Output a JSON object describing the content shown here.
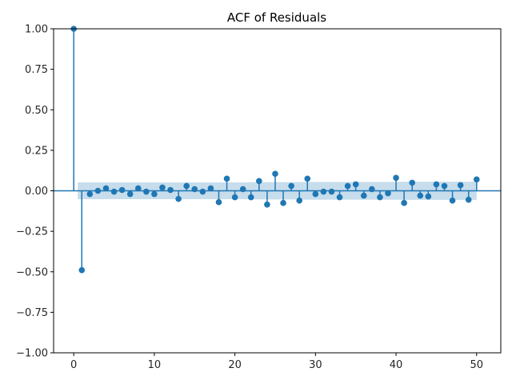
{
  "chart_data": {
    "type": "stem",
    "title": "ACF of Residuals",
    "xlabel": "",
    "ylabel": "",
    "xlim": [
      -2.5,
      53
    ],
    "ylim": [
      -1.0,
      1.0
    ],
    "x_ticks": [
      0,
      10,
      20,
      30,
      40,
      50
    ],
    "x_tick_labels": [
      "0",
      "10",
      "20",
      "30",
      "40",
      "50"
    ],
    "y_ticks": [
      -1.0,
      -0.75,
      -0.5,
      -0.25,
      0.0,
      0.25,
      0.5,
      0.75,
      1.0
    ],
    "y_tick_labels": [
      "−1.00",
      "−0.75",
      "−0.50",
      "−0.25",
      "0.00",
      "0.25",
      "0.50",
      "0.75",
      "1.00"
    ],
    "grid": false,
    "lags": [
      0,
      1,
      2,
      3,
      4,
      5,
      6,
      7,
      8,
      9,
      10,
      11,
      12,
      13,
      14,
      15,
      16,
      17,
      18,
      19,
      20,
      21,
      22,
      23,
      24,
      25,
      26,
      27,
      28,
      29,
      30,
      31,
      32,
      33,
      34,
      35,
      36,
      37,
      38,
      39,
      40,
      41,
      42,
      43,
      44,
      45,
      46,
      47,
      48,
      49,
      50
    ],
    "values": [
      1.0,
      -0.49,
      -0.02,
      0.0,
      0.015,
      -0.005,
      0.005,
      -0.02,
      0.015,
      -0.005,
      -0.02,
      0.02,
      0.005,
      -0.05,
      0.03,
      0.01,
      -0.005,
      0.015,
      -0.07,
      0.075,
      -0.04,
      0.01,
      -0.04,
      0.06,
      -0.085,
      0.105,
      -0.075,
      0.03,
      -0.06,
      0.075,
      -0.02,
      -0.005,
      -0.005,
      -0.04,
      0.03,
      0.04,
      -0.03,
      0.01,
      -0.04,
      -0.015,
      0.08,
      -0.075,
      0.05,
      -0.03,
      -0.035,
      0.04,
      0.03,
      -0.06,
      0.035,
      -0.055,
      0.07
    ],
    "confidence_band": [
      0.05,
      0.052,
      0.052,
      0.052,
      0.052,
      0.052,
      0.052,
      0.052,
      0.052,
      0.052,
      0.052,
      0.052,
      0.052,
      0.052,
      0.052,
      0.052,
      0.052,
      0.052,
      0.052,
      0.052,
      0.052,
      0.052,
      0.053,
      0.053,
      0.053,
      0.054,
      0.054,
      0.054,
      0.054,
      0.055,
      0.055,
      0.055,
      0.055,
      0.055,
      0.055,
      0.055,
      0.055,
      0.055,
      0.055,
      0.055,
      0.055,
      0.056,
      0.056,
      0.056,
      0.056,
      0.056,
      0.056,
      0.056,
      0.056,
      0.056,
      0.056
    ],
    "colors": {
      "stem": "#1f77b4",
      "band": "#1f77b4",
      "axis": "#000000"
    }
  }
}
